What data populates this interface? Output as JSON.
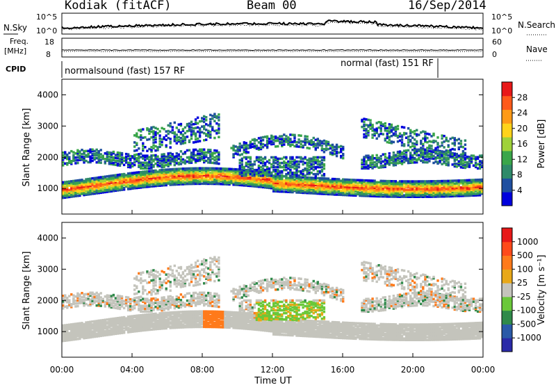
{
  "header": {
    "station": "Kodiak (fitACF)",
    "beam": "Beam 00",
    "date": "16/Sep/2014"
  },
  "top_panels": {
    "nsky": {
      "label": "N.Sky",
      "ticks": [
        "10^5",
        "10^0"
      ]
    },
    "nsearch": {
      "label": "N.Search",
      "ticks": [
        "10^5",
        "10^0"
      ]
    },
    "freq": {
      "label_line1": "Freq.",
      "label_line2": "[MHz]",
      "ticks": [
        "18",
        "8"
      ]
    },
    "nave": {
      "label": "Nave",
      "ticks": [
        "60",
        "0"
      ]
    },
    "cpid": {
      "label": "CPID",
      "modes": [
        "normalsound (fast) 157 RF",
        "normal (fast) 151 RF"
      ]
    }
  },
  "colors": {
    "power_scale": [
      "#0000dd",
      "#1f4fa0",
      "#2f8a6a",
      "#3aa64a",
      "#9fd23a",
      "#ffd31a",
      "#ff9a16",
      "#ff5a1a",
      "#e81818"
    ],
    "velocity_scale": [
      "#2a2aa8",
      "#2a5aa8",
      "#2f8a4a",
      "#6ac83a",
      "#c4c4bc",
      "#e8a818",
      "#ff7a1a",
      "#ff4a1a",
      "#e81818"
    ]
  },
  "chart_data": [
    {
      "type": "heatmap",
      "name": "Power",
      "xlabel": "",
      "ylabel": "Slant Range [km]",
      "x_range_hours": [
        0,
        24
      ],
      "ylim": [
        180,
        4500
      ],
      "y_ticks": [
        "1000",
        "2000",
        "3000",
        "4000"
      ],
      "colorbar": {
        "label": "Power [dB]",
        "ticks": [
          "28",
          "24",
          "20",
          "16",
          "12",
          "8",
          "4"
        ],
        "range": [
          0,
          32
        ]
      }
    },
    {
      "type": "heatmap",
      "name": "Velocity",
      "xlabel": "Time UT",
      "ylabel": "Slant Range [km]",
      "x_range_hours": [
        0,
        24
      ],
      "ylim": [
        180,
        4500
      ],
      "x_ticks": [
        "00:00",
        "04:00",
        "08:00",
        "12:00",
        "16:00",
        "20:00",
        "00:00"
      ],
      "y_ticks": [
        "1000",
        "2000",
        "3000",
        "4000"
      ],
      "colorbar": {
        "label": "Velocity [m s⁻¹]",
        "ticks": [
          "1000",
          "500",
          "100",
          "25",
          "-25",
          "-100",
          "-500",
          "-1000"
        ]
      }
    }
  ]
}
